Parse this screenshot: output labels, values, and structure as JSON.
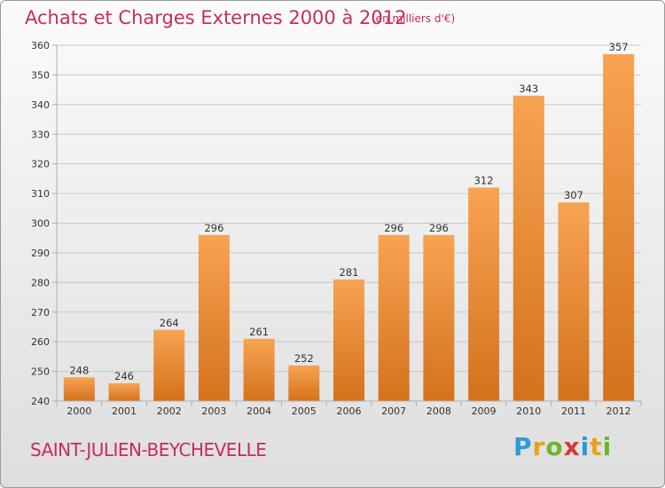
{
  "title": "Achats et Charges Externes 2000 à 2012",
  "subtitle": "(en milliers d'€)",
  "town": "SAINT-JULIEN-BEYCHEVELLE",
  "logo": {
    "letters": [
      {
        "char": "P",
        "color": "#2a9cd6"
      },
      {
        "char": "r",
        "color": "#e8a21c"
      },
      {
        "char": "o",
        "color": "#6fb52c"
      },
      {
        "char": "x",
        "color": "#d23b3b"
      },
      {
        "char": "i",
        "color": "#2a9cd6"
      },
      {
        "char": "t",
        "color": "#e8a21c"
      },
      {
        "char": "i",
        "color": "#6fb52c"
      }
    ]
  },
  "colors": {
    "bar_top": "#f7a352",
    "bar_bottom": "#d4721c",
    "grid": "#c8c8c8",
    "axis": "#b0b0b0",
    "accent": "#c62e55"
  },
  "chart_data": {
    "type": "bar",
    "title": "Achats et Charges Externes 2000 à 2012",
    "subtitle": "(en milliers d'€)",
    "categories": [
      "2000",
      "2001",
      "2002",
      "2003",
      "2004",
      "2005",
      "2006",
      "2007",
      "2008",
      "2009",
      "2010",
      "2011",
      "2012"
    ],
    "values": [
      248,
      246,
      264,
      296,
      261,
      252,
      281,
      296,
      296,
      312,
      343,
      307,
      357
    ],
    "ylim": [
      240,
      360
    ],
    "yticks": [
      240,
      250,
      260,
      270,
      280,
      290,
      300,
      310,
      320,
      330,
      340,
      350,
      360
    ],
    "grid": true,
    "legend": "none",
    "xlabel": "",
    "ylabel": ""
  }
}
